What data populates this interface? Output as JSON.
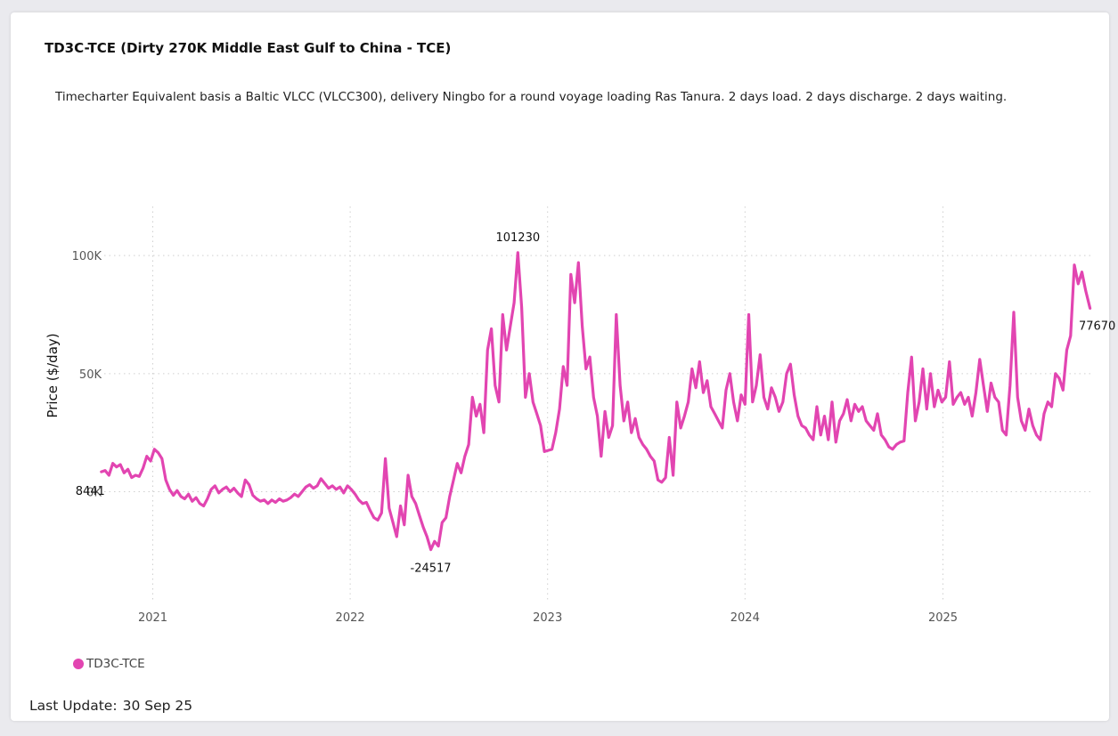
{
  "card": {
    "title": "TD3C-TCE (Dirty 270K Middle East Gulf to China - TCE)",
    "subtitle": "Timecharter Equivalent basis a Baltic VLCC (VLCC300), delivery Ningbo for a round voyage loading Ras Tanura. 2 days load. 2 days discharge. 2 days waiting.",
    "last_update_label": "Last Update:",
    "last_update_value": "30 Sep 25"
  },
  "colors": {
    "series": "#e245b1",
    "grid": "#cfcfcf",
    "background": "#ffffff"
  },
  "chart_data": {
    "type": "line",
    "title": "TD3C-TCE (Dirty 270K Middle East Gulf to China - TCE)",
    "xlabel": "",
    "ylabel": "Price ($/day)",
    "x_ticks": [
      "2021",
      "2022",
      "2023",
      "2024",
      "2025"
    ],
    "y_ticks": [
      {
        "value": 0,
        "label": "0K"
      },
      {
        "value": 50000,
        "label": "50K"
      },
      {
        "value": 100000,
        "label": "100K"
      }
    ],
    "xlim": [
      "2020-09-25",
      "2025-10-22"
    ],
    "ylim": [
      -45000,
      120000
    ],
    "grid": true,
    "legend": "bottom-left",
    "series": [
      {
        "name": "TD3C-TCE",
        "points": [
          [
            "2020-09-28",
            8441
          ],
          [
            "2020-10-05",
            9000
          ],
          [
            "2020-10-12",
            7000
          ],
          [
            "2020-10-19",
            12000
          ],
          [
            "2020-10-26",
            10500
          ],
          [
            "2020-11-02",
            11500
          ],
          [
            "2020-11-09",
            8000
          ],
          [
            "2020-11-16",
            9500
          ],
          [
            "2020-11-23",
            6000
          ],
          [
            "2020-11-30",
            7000
          ],
          [
            "2020-12-07",
            6500
          ],
          [
            "2020-12-14",
            10000
          ],
          [
            "2020-12-21",
            15000
          ],
          [
            "2020-12-28",
            13000
          ],
          [
            "2021-01-04",
            18000
          ],
          [
            "2021-01-11",
            16500
          ],
          [
            "2021-01-18",
            14000
          ],
          [
            "2021-01-25",
            5000
          ],
          [
            "2021-02-01",
            1000
          ],
          [
            "2021-02-08",
            -1500
          ],
          [
            "2021-02-15",
            500
          ],
          [
            "2021-02-22",
            -2000
          ],
          [
            "2021-03-01",
            -3000
          ],
          [
            "2021-03-08",
            -1000
          ],
          [
            "2021-03-15",
            -4000
          ],
          [
            "2021-03-22",
            -2500
          ],
          [
            "2021-03-29",
            -5000
          ],
          [
            "2021-04-05",
            -6000
          ],
          [
            "2021-04-12",
            -3000
          ],
          [
            "2021-04-19",
            1000
          ],
          [
            "2021-04-26",
            2500
          ],
          [
            "2021-05-03",
            -500
          ],
          [
            "2021-05-10",
            1000
          ],
          [
            "2021-05-17",
            2000
          ],
          [
            "2021-05-24",
            0
          ],
          [
            "2021-05-31",
            1500
          ],
          [
            "2021-06-07",
            -500
          ],
          [
            "2021-06-14",
            -2000
          ],
          [
            "2021-06-21",
            5000
          ],
          [
            "2021-06-28",
            3000
          ],
          [
            "2021-07-05",
            -1500
          ],
          [
            "2021-07-12",
            -3000
          ],
          [
            "2021-07-19",
            -4000
          ],
          [
            "2021-07-26",
            -3500
          ],
          [
            "2021-08-02",
            -5000
          ],
          [
            "2021-08-09",
            -3500
          ],
          [
            "2021-08-16",
            -4500
          ],
          [
            "2021-08-23",
            -3000
          ],
          [
            "2021-08-30",
            -4000
          ],
          [
            "2021-09-06",
            -3500
          ],
          [
            "2021-09-13",
            -2500
          ],
          [
            "2021-09-20",
            -1000
          ],
          [
            "2021-09-27",
            -2000
          ],
          [
            "2021-10-04",
            0
          ],
          [
            "2021-10-11",
            2000
          ],
          [
            "2021-10-18",
            3000
          ],
          [
            "2021-10-25",
            1500
          ],
          [
            "2021-11-01",
            2500
          ],
          [
            "2021-11-08",
            5500
          ],
          [
            "2021-11-15",
            3500
          ],
          [
            "2021-11-22",
            1500
          ],
          [
            "2021-11-29",
            2500
          ],
          [
            "2021-12-06",
            1000
          ],
          [
            "2021-12-13",
            2000
          ],
          [
            "2021-12-20",
            -500
          ],
          [
            "2021-12-27",
            2500
          ],
          [
            "2022-01-03",
            1000
          ],
          [
            "2022-01-10",
            -1000
          ],
          [
            "2022-01-17",
            -3500
          ],
          [
            "2022-01-24",
            -5000
          ],
          [
            "2022-01-31",
            -4500
          ],
          [
            "2022-02-07",
            -8000
          ],
          [
            "2022-02-14",
            -11000
          ],
          [
            "2022-02-21",
            -12000
          ],
          [
            "2022-02-28",
            -9000
          ],
          [
            "2022-03-07",
            14000
          ],
          [
            "2022-03-14",
            -7000
          ],
          [
            "2022-03-21",
            -13000
          ],
          [
            "2022-03-28",
            -19000
          ],
          [
            "2022-04-04",
            -6000
          ],
          [
            "2022-04-11",
            -14000
          ],
          [
            "2022-04-18",
            7000
          ],
          [
            "2022-04-25",
            -2000
          ],
          [
            "2022-05-02",
            -5000
          ],
          [
            "2022-05-09",
            -10000
          ],
          [
            "2022-05-16",
            -15000
          ],
          [
            "2022-05-23",
            -19000
          ],
          [
            "2022-05-30",
            -24517
          ],
          [
            "2022-06-06",
            -21000
          ],
          [
            "2022-06-13",
            -23000
          ],
          [
            "2022-06-20",
            -13000
          ],
          [
            "2022-06-27",
            -11000
          ],
          [
            "2022-07-04",
            -2000
          ],
          [
            "2022-07-11",
            5000
          ],
          [
            "2022-07-18",
            12000
          ],
          [
            "2022-07-25",
            8000
          ],
          [
            "2022-08-01",
            15000
          ],
          [
            "2022-08-08",
            20000
          ],
          [
            "2022-08-15",
            40000
          ],
          [
            "2022-08-22",
            32000
          ],
          [
            "2022-08-29",
            37000
          ],
          [
            "2022-09-05",
            25000
          ],
          [
            "2022-09-12",
            60000
          ],
          [
            "2022-09-19",
            69000
          ],
          [
            "2022-09-26",
            45000
          ],
          [
            "2022-10-03",
            38000
          ],
          [
            "2022-10-10",
            75000
          ],
          [
            "2022-10-17",
            60000
          ],
          [
            "2022-10-24",
            70000
          ],
          [
            "2022-10-31",
            80000
          ],
          [
            "2022-11-07",
            101230
          ],
          [
            "2022-11-14",
            78000
          ],
          [
            "2022-11-21",
            40000
          ],
          [
            "2022-11-28",
            50000
          ],
          [
            "2022-12-05",
            38000
          ],
          [
            "2022-12-12",
            33000
          ],
          [
            "2022-12-19",
            28000
          ],
          [
            "2022-12-26",
            17000
          ],
          [
            "2023-01-02",
            17500
          ],
          [
            "2023-01-09",
            18000
          ],
          [
            "2023-01-16",
            25000
          ],
          [
            "2023-01-23",
            35000
          ],
          [
            "2023-01-30",
            53000
          ],
          [
            "2023-02-06",
            45000
          ],
          [
            "2023-02-13",
            92000
          ],
          [
            "2023-02-20",
            80000
          ],
          [
            "2023-02-27",
            97000
          ],
          [
            "2023-03-06",
            70000
          ],
          [
            "2023-03-13",
            52000
          ],
          [
            "2023-03-20",
            57000
          ],
          [
            "2023-03-27",
            40000
          ],
          [
            "2023-04-03",
            32000
          ],
          [
            "2023-04-10",
            15000
          ],
          [
            "2023-04-17",
            34000
          ],
          [
            "2023-04-24",
            23000
          ],
          [
            "2023-05-01",
            28000
          ],
          [
            "2023-05-08",
            75000
          ],
          [
            "2023-05-15",
            45000
          ],
          [
            "2023-05-22",
            30000
          ],
          [
            "2023-05-29",
            38000
          ],
          [
            "2023-06-05",
            25000
          ],
          [
            "2023-06-12",
            31000
          ],
          [
            "2023-06-19",
            23000
          ],
          [
            "2023-06-26",
            20000
          ],
          [
            "2023-07-03",
            18000
          ],
          [
            "2023-07-10",
            15000
          ],
          [
            "2023-07-17",
            13000
          ],
          [
            "2023-07-24",
            5000
          ],
          [
            "2023-07-31",
            4000
          ],
          [
            "2023-08-07",
            6000
          ],
          [
            "2023-08-14",
            23000
          ],
          [
            "2023-08-21",
            7000
          ],
          [
            "2023-08-28",
            38000
          ],
          [
            "2023-09-04",
            27000
          ],
          [
            "2023-09-11",
            32000
          ],
          [
            "2023-09-18",
            38000
          ],
          [
            "2023-09-25",
            52000
          ],
          [
            "2023-10-02",
            44000
          ],
          [
            "2023-10-09",
            55000
          ],
          [
            "2023-10-16",
            42000
          ],
          [
            "2023-10-23",
            47000
          ],
          [
            "2023-10-30",
            36000
          ],
          [
            "2023-11-06",
            33000
          ],
          [
            "2023-11-13",
            30000
          ],
          [
            "2023-11-20",
            27000
          ],
          [
            "2023-11-27",
            43000
          ],
          [
            "2023-12-04",
            50000
          ],
          [
            "2023-12-11",
            38000
          ],
          [
            "2023-12-18",
            30000
          ],
          [
            "2023-12-25",
            41000
          ],
          [
            "2024-01-01",
            37000
          ],
          [
            "2024-01-08",
            75000
          ],
          [
            "2024-01-15",
            38000
          ],
          [
            "2024-01-22",
            45000
          ],
          [
            "2024-01-29",
            58000
          ],
          [
            "2024-02-05",
            40000
          ],
          [
            "2024-02-12",
            35000
          ],
          [
            "2024-02-19",
            44000
          ],
          [
            "2024-02-26",
            40000
          ],
          [
            "2024-03-04",
            34000
          ],
          [
            "2024-03-11",
            38000
          ],
          [
            "2024-03-18",
            50000
          ],
          [
            "2024-03-25",
            54000
          ],
          [
            "2024-04-01",
            41000
          ],
          [
            "2024-04-08",
            32000
          ],
          [
            "2024-04-15",
            28000
          ],
          [
            "2024-04-22",
            27000
          ],
          [
            "2024-04-29",
            24000
          ],
          [
            "2024-05-06",
            22000
          ],
          [
            "2024-05-13",
            36000
          ],
          [
            "2024-05-20",
            24000
          ],
          [
            "2024-05-27",
            32000
          ],
          [
            "2024-06-03",
            22000
          ],
          [
            "2024-06-10",
            38000
          ],
          [
            "2024-06-17",
            21000
          ],
          [
            "2024-06-24",
            30000
          ],
          [
            "2024-07-01",
            33000
          ],
          [
            "2024-07-08",
            39000
          ],
          [
            "2024-07-15",
            30000
          ],
          [
            "2024-07-22",
            37000
          ],
          [
            "2024-07-29",
            34000
          ],
          [
            "2024-08-05",
            36000
          ],
          [
            "2024-08-12",
            30000
          ],
          [
            "2024-08-19",
            28000
          ],
          [
            "2024-08-26",
            26000
          ],
          [
            "2024-09-02",
            33000
          ],
          [
            "2024-09-09",
            24000
          ],
          [
            "2024-09-16",
            22000
          ],
          [
            "2024-09-23",
            19000
          ],
          [
            "2024-09-30",
            18000
          ],
          [
            "2024-10-07",
            20000
          ],
          [
            "2024-10-14",
            21000
          ],
          [
            "2024-10-21",
            21500
          ],
          [
            "2024-10-28",
            42000
          ],
          [
            "2024-11-04",
            57000
          ],
          [
            "2024-11-11",
            30000
          ],
          [
            "2024-11-18",
            38000
          ],
          [
            "2024-11-25",
            52000
          ],
          [
            "2024-12-02",
            35000
          ],
          [
            "2024-12-09",
            50000
          ],
          [
            "2024-12-16",
            36000
          ],
          [
            "2024-12-23",
            43000
          ],
          [
            "2024-12-30",
            38000
          ],
          [
            "2025-01-06",
            40000
          ],
          [
            "2025-01-13",
            55000
          ],
          [
            "2025-01-20",
            37000
          ],
          [
            "2025-01-27",
            40000
          ],
          [
            "2025-02-03",
            42000
          ],
          [
            "2025-02-10",
            37000
          ],
          [
            "2025-02-17",
            40000
          ],
          [
            "2025-02-24",
            32000
          ],
          [
            "2025-03-03",
            42000
          ],
          [
            "2025-03-10",
            56000
          ],
          [
            "2025-03-17",
            45000
          ],
          [
            "2025-03-24",
            34000
          ],
          [
            "2025-03-31",
            46000
          ],
          [
            "2025-04-07",
            40000
          ],
          [
            "2025-04-14",
            38000
          ],
          [
            "2025-04-21",
            26000
          ],
          [
            "2025-04-28",
            24000
          ],
          [
            "2025-05-05",
            45000
          ],
          [
            "2025-05-12",
            76000
          ],
          [
            "2025-05-19",
            40000
          ],
          [
            "2025-05-26",
            30000
          ],
          [
            "2025-06-02",
            26000
          ],
          [
            "2025-06-09",
            35000
          ],
          [
            "2025-06-16",
            28000
          ],
          [
            "2025-06-23",
            24000
          ],
          [
            "2025-06-30",
            22000
          ],
          [
            "2025-07-07",
            33000
          ],
          [
            "2025-07-14",
            38000
          ],
          [
            "2025-07-21",
            36000
          ],
          [
            "2025-07-28",
            50000
          ],
          [
            "2025-08-04",
            48000
          ],
          [
            "2025-08-11",
            43000
          ],
          [
            "2025-08-18",
            60000
          ],
          [
            "2025-08-25",
            66000
          ],
          [
            "2025-09-01",
            96000
          ],
          [
            "2025-09-08",
            88000
          ],
          [
            "2025-09-15",
            93000
          ],
          [
            "2025-09-22",
            85000
          ],
          [
            "2025-09-30",
            77670
          ]
        ]
      }
    ],
    "annotations": [
      {
        "x": "2020-09-28",
        "y": 8441,
        "label": "8441",
        "position": "below-left"
      },
      {
        "x": "2022-11-07",
        "y": 101230,
        "label": "101230",
        "position": "above"
      },
      {
        "x": "2022-05-30",
        "y": -24517,
        "label": "-24517",
        "position": "below"
      },
      {
        "x": "2025-09-30",
        "y": 77670,
        "label": "77670",
        "position": "below-right"
      }
    ]
  }
}
